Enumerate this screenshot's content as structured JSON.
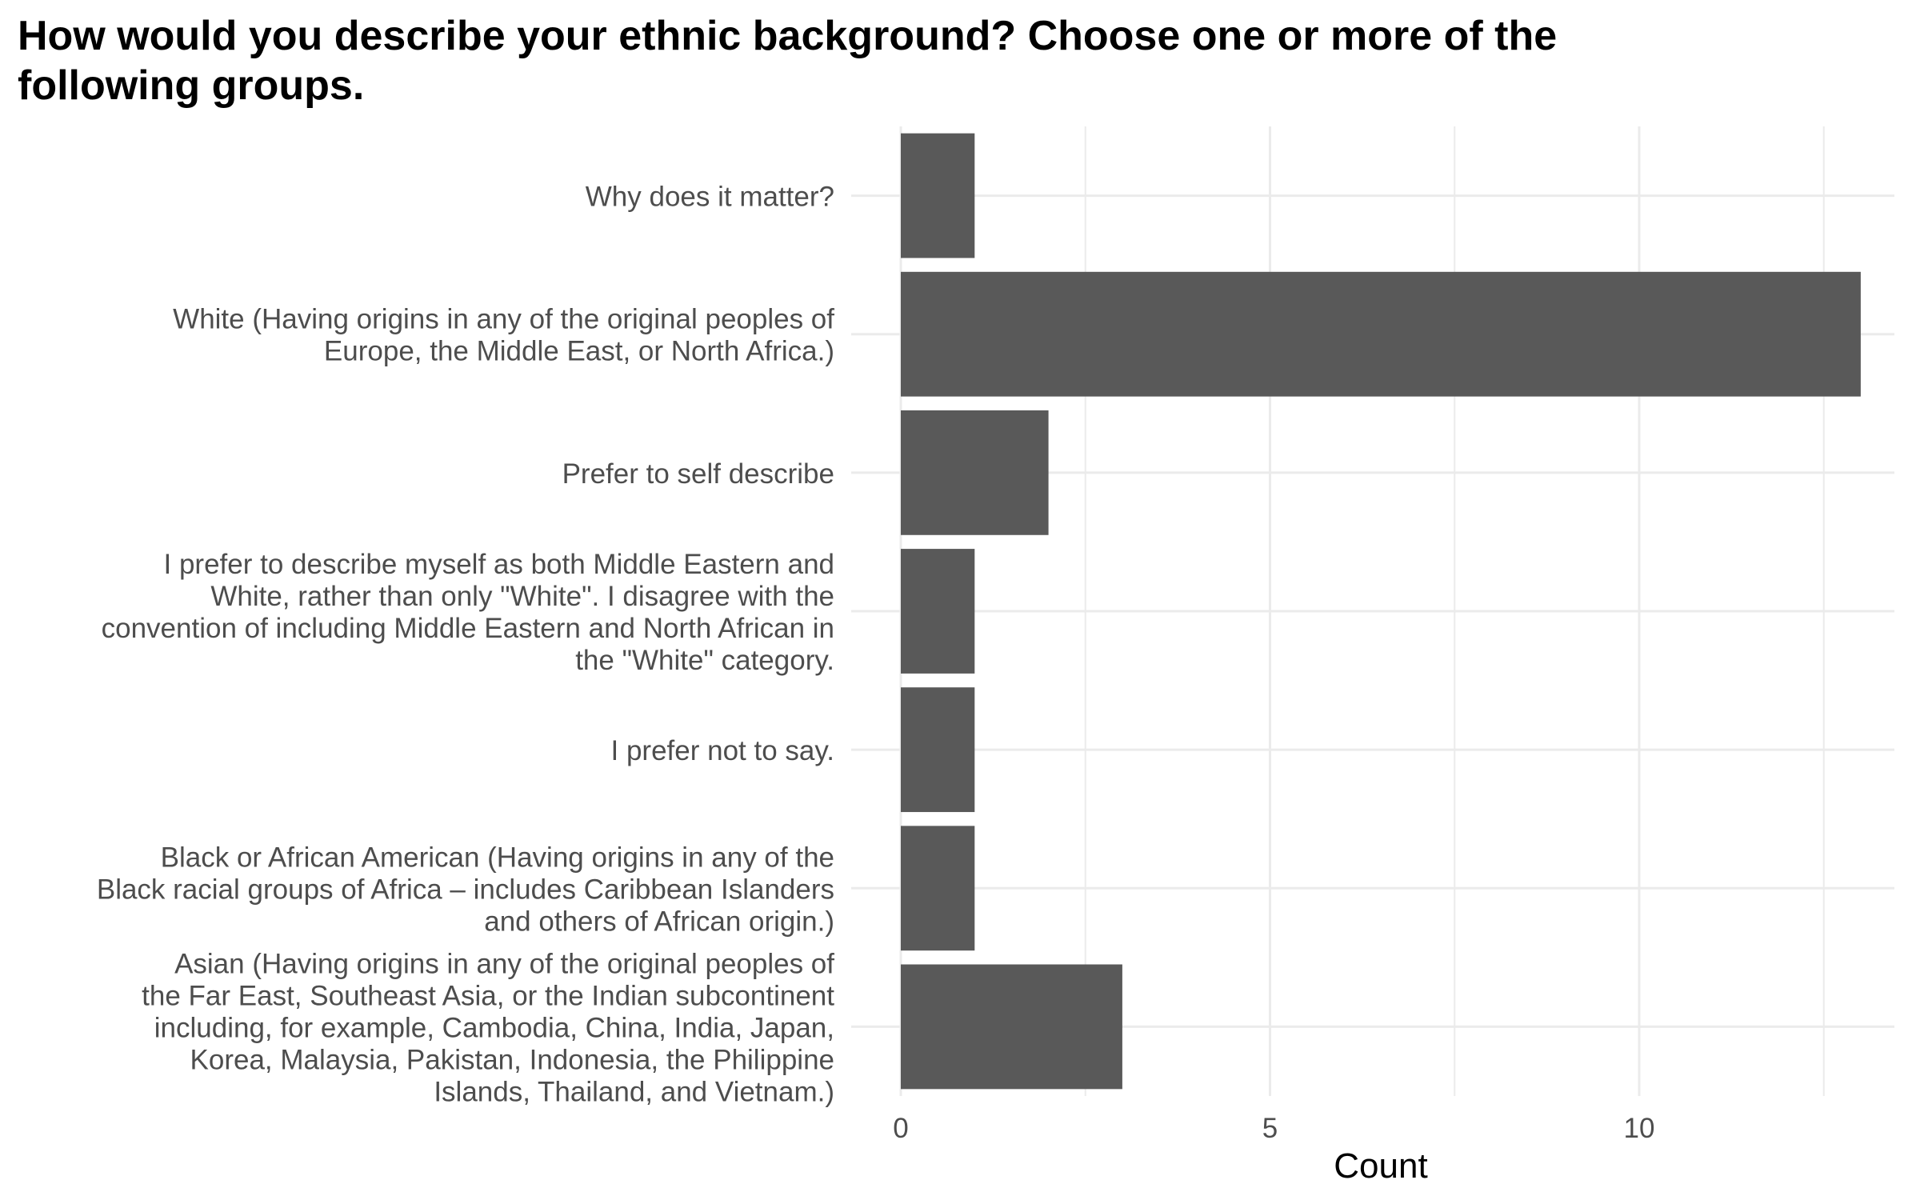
{
  "chart_data": {
    "type": "bar",
    "orientation": "horizontal",
    "title": "How would you describe your ethnic background? Choose one or more of the following groups.",
    "xlabel": "Count",
    "ylabel": "",
    "xlim": [
      0,
      13.6
    ],
    "x_ticks": [
      0,
      5,
      10
    ],
    "x_minor_ticks": [
      2.5,
      7.5,
      12.5
    ],
    "grid": true,
    "categories": [
      {
        "lines": [
          "Why does it matter?"
        ],
        "value": 1
      },
      {
        "lines": [
          "White (Having origins in any of the original peoples of",
          "Europe, the Middle East, or North Africa.)"
        ],
        "value": 13
      },
      {
        "lines": [
          "Prefer to self describe"
        ],
        "value": 2
      },
      {
        "lines": [
          "I prefer to describe myself as both Middle Eastern and",
          "White, rather than only \"White\". I disagree with the",
          "convention of including Middle Eastern and North African in",
          "the \"White\" category."
        ],
        "value": 1
      },
      {
        "lines": [
          "I prefer not to say."
        ],
        "value": 1
      },
      {
        "lines": [
          "Black or African American (Having origins in any of the",
          "Black racial groups of Africa – includes Caribbean Islanders",
          "and others of African origin.)"
        ],
        "value": 1
      },
      {
        "lines": [
          "Asian (Having origins in any of the original peoples of",
          "the Far East, Southeast Asia, or the Indian subcontinent",
          "including, for example, Cambodia, China, India, Japan,",
          "Korea, Malaysia, Pakistan, Indonesia, the Philippine",
          "Islands, Thailand, and Vietnam.)"
        ],
        "value": 3
      }
    ],
    "colors": {
      "bar": "#595959",
      "grid": "#ebebeb",
      "tick_text": "#4d4d4d",
      "axis_title": "#000000"
    }
  }
}
